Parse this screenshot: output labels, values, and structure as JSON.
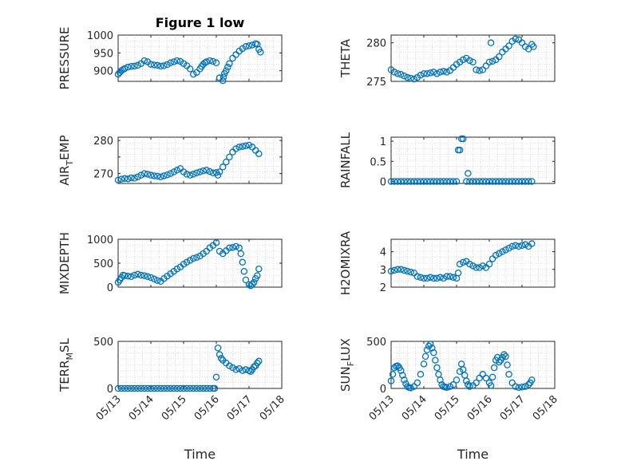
{
  "figure": {
    "title": "Figure 1 low"
  },
  "style": {
    "marker_color": "#0072BD",
    "axis_color": "#262626",
    "grid_color": "#bdbdbd"
  },
  "chart_data": [
    {
      "type": "scatter",
      "ylabel": "PRESSURE",
      "xlabel": "",
      "title": "Figure 1 low",
      "grid": true,
      "xlim": [
        "05/13",
        "05/18"
      ],
      "xticks": [
        "05/13",
        "05/14",
        "05/15",
        "05/16",
        "05/17",
        "05/18"
      ],
      "ylim": [
        870,
        1000
      ],
      "yticks": [
        900,
        950,
        1000
      ],
      "ytick_labels": [
        "900",
        "950",
        "1000"
      ],
      "x": [
        0.0,
        0.05,
        0.1,
        0.15,
        0.2,
        0.3,
        0.4,
        0.5,
        0.6,
        0.7,
        0.8,
        0.9,
        1.0,
        1.1,
        1.2,
        1.3,
        1.4,
        1.5,
        1.6,
        1.7,
        1.8,
        1.9,
        2.0,
        2.1,
        2.2,
        2.3,
        2.4,
        2.5,
        2.55,
        2.6,
        2.65,
        2.7,
        2.8,
        2.9,
        3.0,
        3.1,
        3.2,
        3.22,
        3.25,
        3.3,
        3.35,
        3.4,
        3.5,
        3.6,
        3.7,
        3.8,
        3.9,
        4.0,
        4.1,
        4.2,
        4.25,
        4.3,
        4.35
      ],
      "y": [
        890,
        895,
        900,
        903,
        906,
        910,
        912,
        913,
        915,
        920,
        928,
        925,
        918,
        916,
        915,
        913,
        914,
        917,
        922,
        925,
        928,
        926,
        920,
        914,
        905,
        890,
        895,
        905,
        912,
        918,
        922,
        925,
        928,
        926,
        922,
        880,
        872,
        882,
        892,
        900,
        910,
        920,
        935,
        945,
        955,
        962,
        968,
        970,
        972,
        976,
        974,
        960,
        952
      ]
    },
    {
      "type": "scatter",
      "ylabel": "THETA",
      "xlabel": "",
      "grid": true,
      "xlim": [
        "05/13",
        "05/18"
      ],
      "xticks": [
        "05/13",
        "05/14",
        "05/15",
        "05/16",
        "05/17",
        "05/18"
      ],
      "ylim": [
        275,
        281
      ],
      "yticks": [
        275,
        280
      ],
      "ytick_labels": [
        "275",
        "280"
      ],
      "x": [
        0.0,
        0.1,
        0.2,
        0.3,
        0.4,
        0.5,
        0.6,
        0.7,
        0.8,
        0.9,
        1.0,
        1.1,
        1.2,
        1.3,
        1.4,
        1.5,
        1.6,
        1.7,
        1.8,
        1.9,
        2.0,
        2.1,
        2.2,
        2.3,
        2.4,
        2.5,
        2.6,
        2.7,
        2.8,
        2.9,
        3.0,
        3.05,
        3.1,
        3.2,
        3.3,
        3.4,
        3.5,
        3.6,
        3.7,
        3.8,
        3.9,
        4.0,
        4.1,
        4.2,
        4.3,
        4.35
      ],
      "y": [
        276.5,
        276.2,
        276.0,
        275.9,
        275.7,
        275.5,
        275.4,
        275.3,
        275.5,
        275.8,
        276.0,
        276.0,
        276.1,
        276.2,
        276.0,
        276.2,
        276.3,
        276.2,
        276.4,
        276.8,
        277.2,
        277.5,
        277.8,
        278.0,
        277.7,
        277.5,
        276.5,
        276.4,
        276.5,
        277.0,
        277.5,
        280.0,
        277.6,
        277.8,
        278.2,
        278.8,
        279.2,
        279.6,
        280.2,
        280.5,
        280.4,
        280.0,
        279.5,
        279.2,
        279.8,
        279.5
      ]
    },
    {
      "type": "scatter",
      "ylabel": "AIR_TEMP",
      "ylabel_main": "AIR",
      "ylabel_sub": "T",
      "ylabel_rest": "EMP",
      "xlabel": "",
      "grid": true,
      "xlim": [
        "05/13",
        "05/18"
      ],
      "xticks": [
        "05/13",
        "05/14",
        "05/15",
        "05/16",
        "05/17",
        "05/18"
      ],
      "ylim": [
        267,
        281
      ],
      "yticks": [
        270,
        275,
        280
      ],
      "ytick_labels": [
        "270",
        "",
        "280"
      ],
      "x": [
        0.0,
        0.1,
        0.2,
        0.3,
        0.4,
        0.5,
        0.6,
        0.7,
        0.8,
        0.9,
        1.0,
        1.1,
        1.2,
        1.3,
        1.4,
        1.5,
        1.6,
        1.7,
        1.8,
        1.9,
        2.0,
        2.1,
        2.2,
        2.3,
        2.4,
        2.5,
        2.6,
        2.7,
        2.8,
        2.9,
        3.0,
        3.05,
        3.1,
        3.2,
        3.3,
        3.4,
        3.5,
        3.6,
        3.7,
        3.8,
        3.9,
        4.0,
        4.1,
        4.2,
        4.3
      ],
      "y": [
        268.0,
        268.3,
        268.5,
        268.4,
        268.7,
        268.6,
        269.0,
        269.5,
        270.0,
        269.8,
        269.5,
        269.3,
        269.2,
        269.0,
        269.3,
        269.6,
        270.0,
        270.5,
        271.0,
        271.5,
        270.5,
        269.8,
        269.5,
        269.8,
        270.2,
        270.5,
        270.8,
        271.0,
        270.6,
        270.2,
        270.3,
        269.5,
        270.5,
        272.0,
        273.5,
        275.0,
        276.5,
        277.5,
        278.0,
        278.2,
        278.4,
        278.6,
        278.0,
        277.0,
        276.0
      ]
    },
    {
      "type": "scatter",
      "ylabel": "RAINFALL",
      "xlabel": "",
      "grid": true,
      "xlim": [
        "05/13",
        "05/18"
      ],
      "xticks": [
        "05/13",
        "05/14",
        "05/15",
        "05/16",
        "05/17",
        "05/18"
      ],
      "ylim": [
        -0.05,
        1.1
      ],
      "yticks": [
        0,
        0.5,
        1
      ],
      "ytick_labels": [
        "0",
        "0.5",
        "1"
      ],
      "x": [
        0.0,
        0.1,
        0.2,
        0.3,
        0.4,
        0.5,
        0.6,
        0.7,
        0.8,
        0.9,
        1.0,
        1.1,
        1.2,
        1.3,
        1.4,
        1.5,
        1.6,
        1.7,
        1.8,
        1.9,
        2.0,
        2.05,
        2.1,
        2.15,
        2.2,
        2.3,
        2.35,
        2.4,
        2.5,
        2.6,
        2.7,
        2.8,
        2.9,
        3.0,
        3.1,
        3.2,
        3.3,
        3.4,
        3.5,
        3.6,
        3.7,
        3.8,
        3.9,
        4.0,
        4.1,
        4.2,
        4.3
      ],
      "y": [
        0,
        0,
        0,
        0,
        0,
        0,
        0,
        0,
        0,
        0,
        0,
        0,
        0,
        0,
        0,
        0,
        0,
        0,
        0,
        0,
        0,
        0.78,
        0.78,
        1.06,
        1.06,
        0,
        0.2,
        0,
        0,
        0,
        0,
        0,
        0,
        0,
        0,
        0,
        0,
        0,
        0,
        0,
        0,
        0,
        0,
        0,
        0,
        0,
        0
      ]
    },
    {
      "type": "scatter",
      "ylabel": "MIXDEPTH",
      "xlabel": "",
      "grid": true,
      "xlim": [
        "05/13",
        "05/18"
      ],
      "xticks": [
        "05/13",
        "05/14",
        "05/15",
        "05/16",
        "05/17",
        "05/18"
      ],
      "ylim": [
        0,
        1000
      ],
      "yticks": [
        0,
        500,
        1000
      ],
      "ytick_labels": [
        "0",
        "500",
        "1000"
      ],
      "x": [
        0.0,
        0.05,
        0.1,
        0.15,
        0.2,
        0.3,
        0.4,
        0.5,
        0.6,
        0.7,
        0.8,
        0.9,
        1.0,
        1.1,
        1.2,
        1.3,
        1.4,
        1.5,
        1.6,
        1.7,
        1.8,
        1.9,
        2.0,
        2.1,
        2.2,
        2.3,
        2.4,
        2.5,
        2.6,
        2.7,
        2.8,
        2.9,
        3.0,
        3.1,
        3.2,
        3.3,
        3.4,
        3.5,
        3.6,
        3.7,
        3.75,
        3.8,
        3.85,
        3.9,
        4.0,
        4.05,
        4.1,
        4.15,
        4.2,
        4.25,
        4.3
      ],
      "y": [
        100,
        150,
        200,
        250,
        240,
        230,
        220,
        250,
        270,
        250,
        240,
        220,
        200,
        170,
        140,
        120,
        180,
        230,
        280,
        330,
        380,
        420,
        480,
        520,
        560,
        600,
        620,
        650,
        700,
        750,
        820,
        870,
        930,
        750,
        700,
        760,
        820,
        830,
        850,
        820,
        700,
        520,
        330,
        150,
        50,
        30,
        60,
        100,
        180,
        240,
        380
      ]
    },
    {
      "type": "scatter",
      "ylabel": "H2OMIXRA",
      "xlabel": "",
      "grid": true,
      "xlim": [
        "05/13",
        "05/18"
      ],
      "xticks": [
        "05/13",
        "05/14",
        "05/15",
        "05/16",
        "05/17",
        "05/18"
      ],
      "ylim": [
        2,
        4.7
      ],
      "yticks": [
        2,
        3,
        4
      ],
      "ytick_labels": [
        "2",
        "3",
        "4"
      ],
      "x": [
        0.0,
        0.1,
        0.2,
        0.3,
        0.4,
        0.5,
        0.6,
        0.7,
        0.8,
        0.9,
        1.0,
        1.1,
        1.2,
        1.3,
        1.4,
        1.5,
        1.6,
        1.7,
        1.8,
        1.9,
        2.0,
        2.05,
        2.1,
        2.2,
        2.3,
        2.4,
        2.5,
        2.6,
        2.7,
        2.8,
        2.9,
        3.0,
        3.1,
        3.2,
        3.3,
        3.4,
        3.5,
        3.6,
        3.7,
        3.8,
        3.9,
        4.0,
        4.1,
        4.2,
        4.3
      ],
      "y": [
        2.9,
        2.95,
        3.0,
        3.0,
        2.95,
        2.9,
        2.85,
        2.8,
        2.6,
        2.55,
        2.5,
        2.5,
        2.55,
        2.5,
        2.5,
        2.55,
        2.5,
        2.6,
        2.6,
        2.55,
        2.5,
        2.8,
        3.3,
        3.4,
        3.45,
        3.3,
        3.2,
        3.1,
        3.1,
        3.2,
        3.1,
        3.3,
        3.6,
        3.8,
        3.9,
        4.0,
        4.1,
        4.2,
        4.3,
        4.35,
        4.3,
        4.35,
        4.4,
        4.3,
        4.45
      ]
    },
    {
      "type": "scatter",
      "ylabel": "TERR_MSL",
      "ylabel_main": "TERR",
      "ylabel_sub": "M",
      "ylabel_rest": "SL",
      "xlabel": "Time",
      "grid": true,
      "xlim": [
        "05/13",
        "05/18"
      ],
      "xticks": [
        "05/13",
        "05/14",
        "05/15",
        "05/16",
        "05/17",
        "05/18"
      ],
      "ylim": [
        0,
        500
      ],
      "yticks": [
        0,
        500
      ],
      "ytick_labels": [
        "0",
        "500"
      ],
      "x": [
        0.0,
        0.1,
        0.2,
        0.3,
        0.4,
        0.5,
        0.6,
        0.7,
        0.8,
        0.9,
        1.0,
        1.1,
        1.2,
        1.3,
        1.4,
        1.5,
        1.6,
        1.7,
        1.8,
        1.9,
        2.0,
        2.1,
        2.2,
        2.3,
        2.4,
        2.5,
        2.6,
        2.7,
        2.8,
        2.9,
        2.95,
        3.0,
        3.05,
        3.1,
        3.15,
        3.2,
        3.3,
        3.4,
        3.5,
        3.6,
        3.7,
        3.8,
        3.9,
        4.0,
        4.05,
        4.1,
        4.15,
        4.2,
        4.25,
        4.3
      ],
      "y": [
        0,
        0,
        0,
        0,
        0,
        0,
        0,
        0,
        0,
        0,
        0,
        0,
        0,
        0,
        0,
        0,
        0,
        0,
        0,
        0,
        0,
        0,
        0,
        0,
        0,
        0,
        0,
        0,
        0,
        0,
        0,
        120,
        430,
        360,
        320,
        300,
        270,
        240,
        220,
        200,
        210,
        190,
        200,
        190,
        180,
        200,
        230,
        240,
        270,
        290
      ]
    },
    {
      "type": "scatter",
      "ylabel": "SUN_FLUX",
      "ylabel_main": "SUN",
      "ylabel_sub": "F",
      "ylabel_rest": "LUX",
      "xlabel": "Time",
      "grid": true,
      "xlim": [
        "05/13",
        "05/18"
      ],
      "xticks": [
        "05/13",
        "05/14",
        "05/15",
        "05/16",
        "05/17",
        "05/18"
      ],
      "ylim": [
        0,
        500
      ],
      "yticks": [
        0,
        500
      ],
      "ytick_labels": [
        "0",
        "500"
      ],
      "x": [
        0.0,
        0.05,
        0.1,
        0.15,
        0.2,
        0.25,
        0.3,
        0.35,
        0.4,
        0.45,
        0.5,
        0.55,
        0.6,
        0.7,
        0.8,
        0.9,
        1.0,
        1.05,
        1.1,
        1.15,
        1.2,
        1.25,
        1.3,
        1.35,
        1.4,
        1.45,
        1.5,
        1.55,
        1.6,
        1.65,
        1.7,
        1.8,
        1.9,
        2.0,
        2.1,
        2.15,
        2.2,
        2.25,
        2.3,
        2.35,
        2.4,
        2.5,
        2.6,
        2.7,
        2.8,
        2.9,
        3.0,
        3.05,
        3.1,
        3.15,
        3.2,
        3.25,
        3.3,
        3.35,
        3.4,
        3.45,
        3.5,
        3.55,
        3.6,
        3.7,
        3.8,
        3.9,
        4.0,
        4.1,
        4.2,
        4.25,
        4.3
      ],
      "y": [
        80,
        150,
        220,
        235,
        240,
        220,
        190,
        140,
        90,
        50,
        20,
        10,
        5,
        20,
        60,
        150,
        260,
        340,
        410,
        450,
        470,
        430,
        380,
        300,
        220,
        150,
        90,
        40,
        20,
        15,
        10,
        20,
        40,
        90,
        180,
        260,
        200,
        140,
        80,
        40,
        20,
        30,
        60,
        110,
        150,
        110,
        60,
        30,
        120,
        220,
        300,
        330,
        280,
        300,
        330,
        360,
        340,
        250,
        150,
        60,
        20,
        10,
        15,
        20,
        40,
        60,
        90
      ]
    }
  ]
}
